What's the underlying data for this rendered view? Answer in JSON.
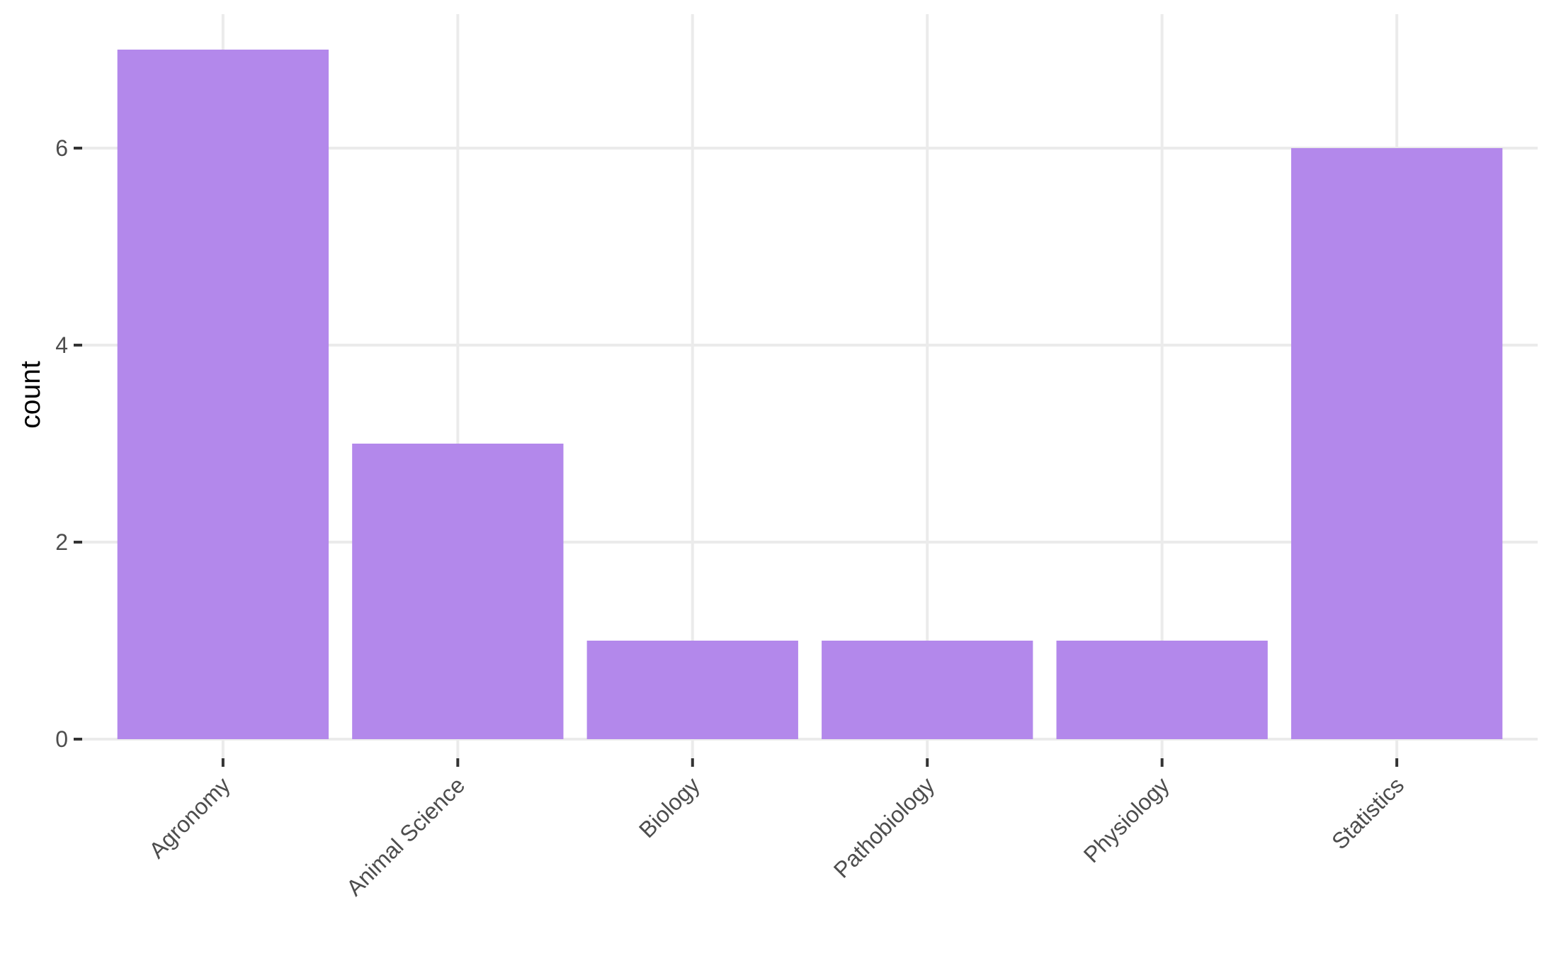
{
  "chart_data": {
    "type": "bar",
    "categories": [
      "Agronomy",
      "Animal Science",
      "Biology",
      "Pathobiology",
      "Physiology",
      "Statistics"
    ],
    "values": [
      7,
      3,
      1,
      1,
      1,
      6
    ],
    "title": "",
    "xlabel": "",
    "ylabel": "count",
    "ylim": [
      0,
      7.35
    ],
    "yticks": [
      0,
      2,
      4,
      6
    ],
    "grid": true,
    "bar_color": "#b388eb",
    "grid_color": "#ebebeb",
    "background_color": "#ffffff"
  }
}
